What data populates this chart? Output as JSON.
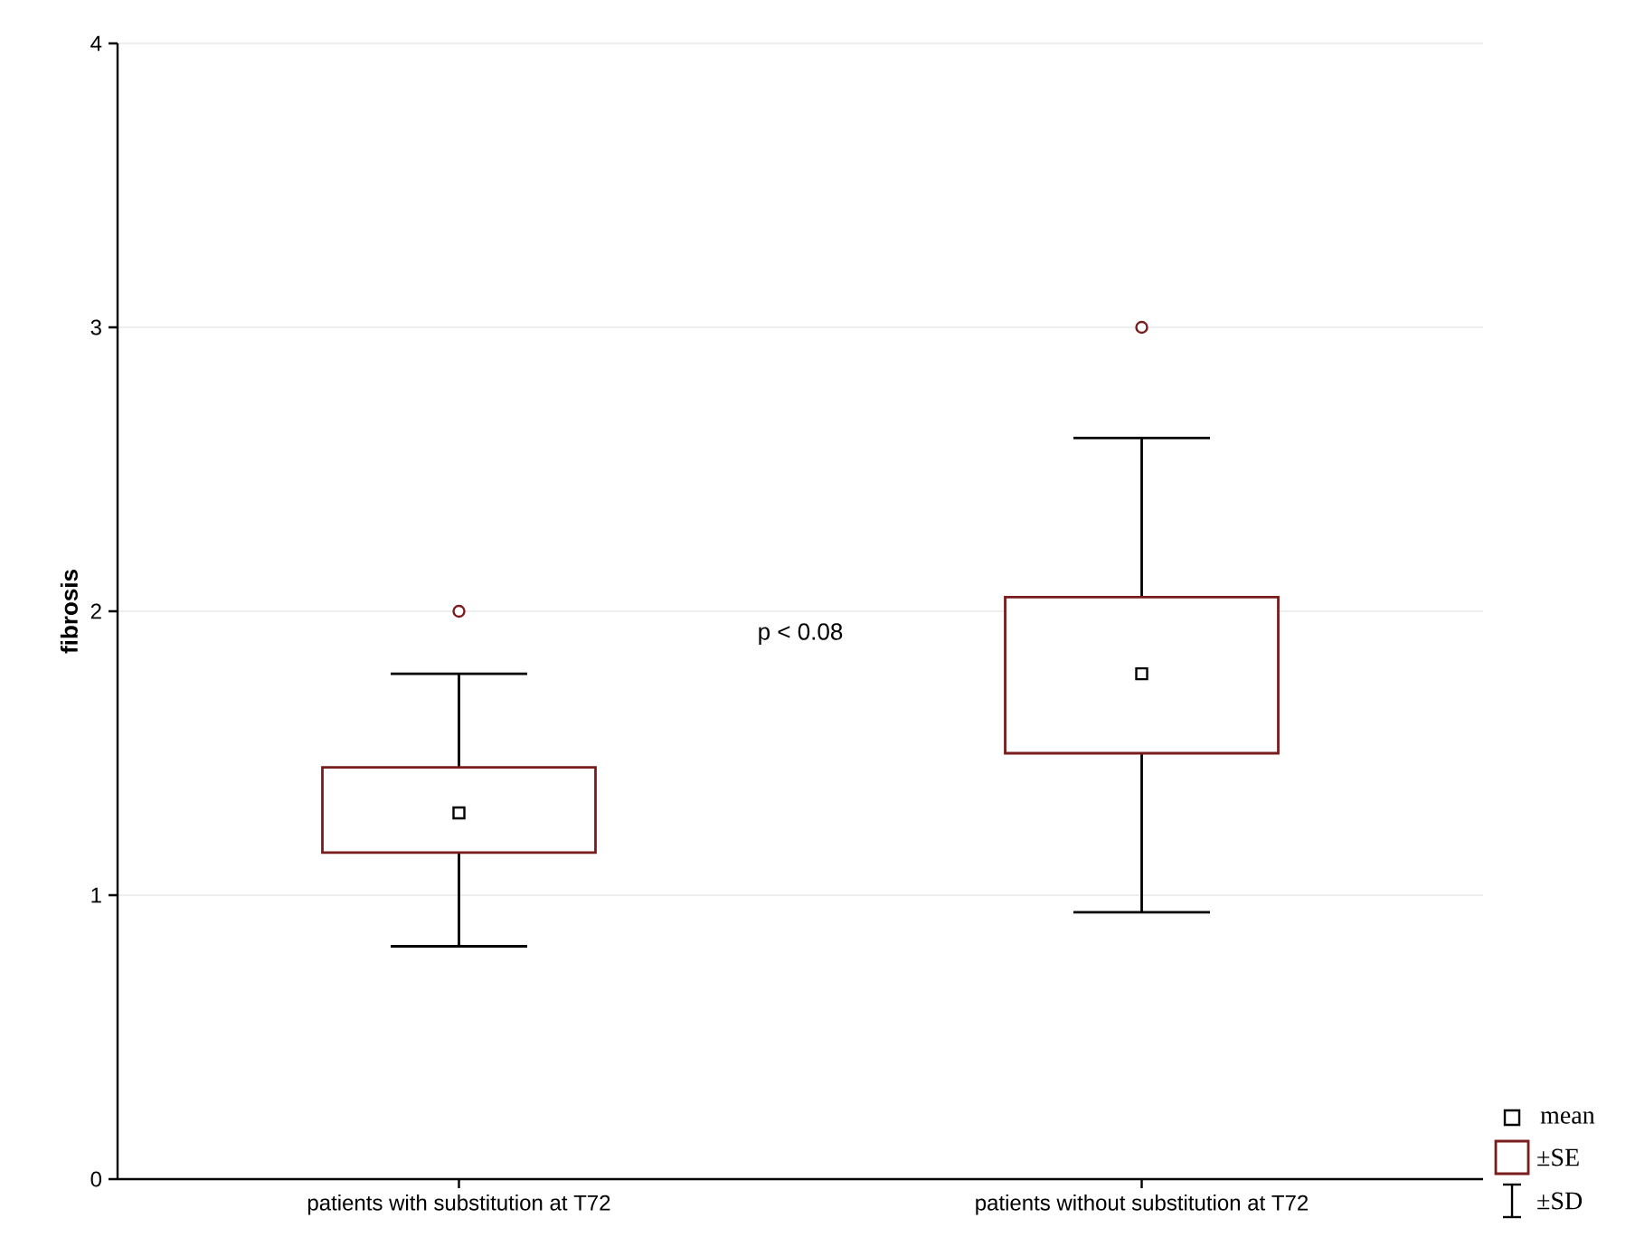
{
  "chart_data": {
    "type": "box",
    "ylabel": "fibrosis",
    "categories": [
      "patients with substitution at T72",
      "patients without substitution at T72"
    ],
    "boxes": [
      {
        "low": 0.82,
        "q1": 1.15,
        "median": 1.29,
        "q3": 1.45,
        "high": 1.78,
        "outliers": [
          2.0
        ]
      },
      {
        "low": 0.94,
        "q1": 1.5,
        "median": 1.78,
        "q3": 2.05,
        "high": 2.61,
        "outliers": [
          3.0
        ]
      }
    ],
    "color": "#7b1c1c",
    "ylim": [
      0,
      4
    ],
    "yticks": [
      0,
      1,
      2,
      3,
      4
    ],
    "grid": "y",
    "marker": "square",
    "annotations": [
      "p < 0.08",
      "mean",
      "±SE",
      "±SD"
    ]
  }
}
